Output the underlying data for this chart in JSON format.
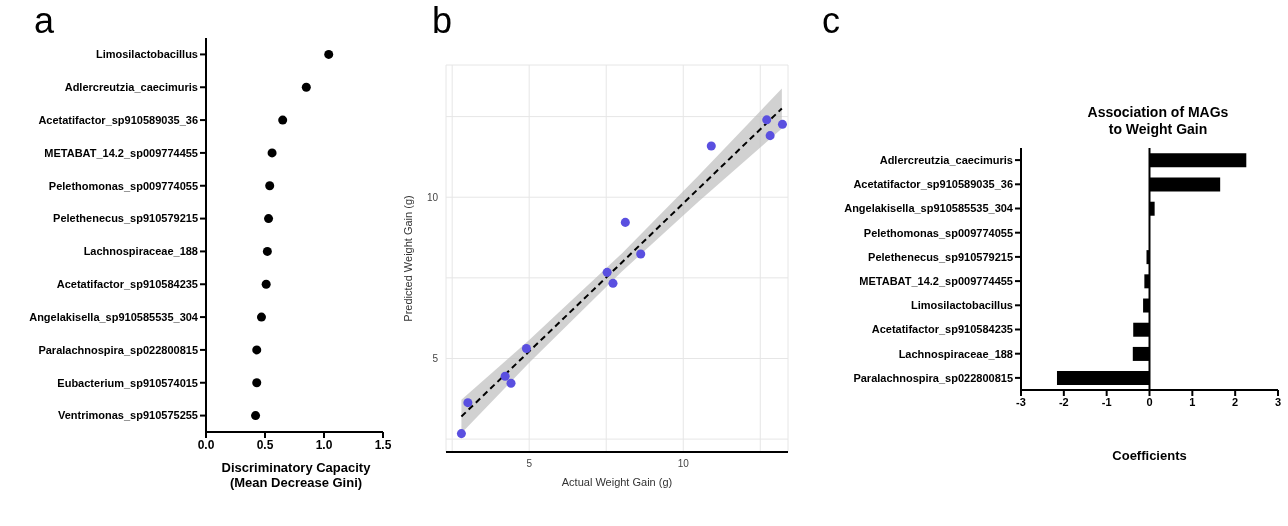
{
  "chart_data": [
    {
      "type": "scatter",
      "orientation": "horizontal",
      "annotations": [
        "a"
      ],
      "xlabel": "Discriminatory Capacity (Mean Decrease Gini)",
      "categories": [
        "Limosilactobacillus",
        "Adlercreutzia_caecimuris",
        "Acetatifactor_sp910589035_36",
        "METABAT_14.2_sp009774455",
        "Pelethomonas_sp009774055",
        "Pelethenecus_sp910579215",
        "Lachnospiraceae_188",
        "Acetatifactor_sp910584235",
        "Angelakisella_sp910585535_304",
        "Paralachnospira_sp022800815",
        "Eubacterium_sp910574015",
        "Ventrimonas_sp910575255"
      ],
      "values": [
        1.04,
        0.85,
        0.65,
        0.56,
        0.54,
        0.53,
        0.52,
        0.51,
        0.47,
        0.43,
        0.43,
        0.42
      ],
      "color": "#000000",
      "marker": "circle",
      "xlim": [
        0,
        1.5
      ],
      "xticks": [
        {
          "value": 0,
          "label": "0.0"
        },
        0.5,
        {
          "value": 1,
          "label": "1.0"
        },
        1.5
      ],
      "grid": false
    },
    {
      "type": "scatter",
      "annotations": [
        "b"
      ],
      "xlabel": "Actual Weight Gain (g)",
      "ylabel": "Predicted Weight Gain (g)",
      "marker": "circle",
      "grid": true,
      "xlim": [
        2.3,
        13.4
      ],
      "ylim": [
        2.1,
        14.1
      ],
      "xticks": [
        {
          "value": 2.5,
          "label": null
        },
        5,
        {
          "value": 7.5,
          "label": null
        },
        10,
        {
          "value": 12.5,
          "label": null
        }
      ],
      "yticks": [
        {
          "value": 2.5,
          "label": null
        },
        5,
        {
          "value": 7.5,
          "label": null
        },
        10,
        {
          "value": 12.5,
          "label": null
        }
      ],
      "series": [
        {
          "type": "scatter",
          "color": "#5a4fe0",
          "x": [
            2.8,
            3.01,
            4.22,
            4.41,
            4.91,
            7.53,
            7.72,
            8.12,
            8.62,
            10.91,
            12.71,
            12.82,
            13.22
          ],
          "values": [
            2.67,
            3.63,
            4.45,
            4.23,
            5.31,
            7.67,
            7.33,
            9.22,
            8.24,
            11.59,
            12.4,
            11.91,
            12.26
          ]
        },
        {
          "type": "line",
          "color": "#000000",
          "line_style": "dashed",
          "marker": "none",
          "x": [
            2.8,
            5,
            8,
            10.5,
            13.2
          ],
          "values": [
            3.2,
            5.22,
            7.97,
            10.27,
            12.75
          ],
          "lower": [
            2.68,
            4.87,
            7.69,
            9.87,
            12.13
          ],
          "upper": [
            3.72,
            5.57,
            8.25,
            10.67,
            13.37
          ]
        }
      ]
    },
    {
      "type": "bar",
      "orientation": "horizontal",
      "title": "Association of MAGs to Weight Gain",
      "annotations": [
        "c"
      ],
      "xlabel": "Coefficients",
      "categories": [
        "Adlercreutzia_caecimuris",
        "Acetatifactor_sp910589035_36",
        "Angelakisella_sp910585535_304",
        "Pelethomonas_sp009774055",
        "Pelethenecus_sp910579215",
        "METABAT_14.2_sp009774455",
        "Limosilactobacillus",
        "Acetatifactor_sp910584235",
        "Lachnospiraceae_188",
        "Paralachnospira_sp022800815"
      ],
      "values": [
        2.26,
        1.65,
        0.12,
        0,
        -0.07,
        -0.12,
        -0.15,
        -0.38,
        -0.39,
        -2.16
      ],
      "color": "#000000",
      "xlim": [
        -3,
        3
      ],
      "xticks": [
        -3,
        -2,
        -1,
        0,
        1,
        2,
        3
      ],
      "ref_lines": [
        {
          "axis": "x",
          "value": 0,
          "color": "#000000"
        }
      ],
      "grid": false
    }
  ]
}
